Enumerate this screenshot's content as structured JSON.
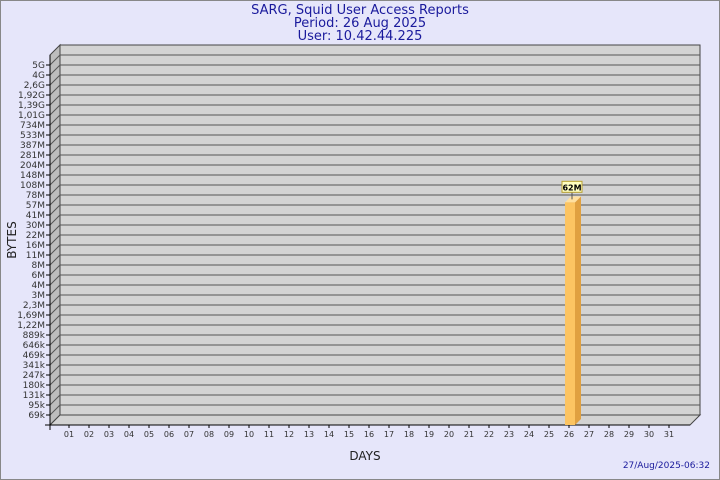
{
  "chart_data": {
    "type": "bar",
    "title": "SARG, Squid User Access Reports",
    "subtitle": [
      "Period: 26 Aug 2025",
      "User: 10.42.44.225"
    ],
    "xlabel": "DAYS",
    "ylabel": "BYTES",
    "y_scale": "log",
    "y_ticks": [
      "69k",
      "95k",
      "131k",
      "180k",
      "247k",
      "341k",
      "469k",
      "646k",
      "889k",
      "1,22M",
      "1,69M",
      "2,3M",
      "3M",
      "4M",
      "6M",
      "8M",
      "11M",
      "16M",
      "22M",
      "30M",
      "41M",
      "57M",
      "78M",
      "108M",
      "148M",
      "204M",
      "281M",
      "387M",
      "533M",
      "734M",
      "1,01G",
      "1,39G",
      "1,92G",
      "2,6G",
      "4G",
      "5G"
    ],
    "y_tick_values": [
      69000,
      95000,
      131000,
      180000,
      247000,
      341000,
      469000,
      646000,
      889000,
      1220000,
      1690000,
      2300000,
      3000000,
      4000000,
      6000000,
      8000000,
      11000000,
      16000000,
      22000000,
      30000000,
      41000000,
      57000000,
      78000000,
      108000000,
      148000000,
      204000000,
      281000000,
      387000000,
      533000000,
      734000000,
      1010000000,
      1390000000,
      1920000000,
      2600000000,
      4000000000,
      5000000000
    ],
    "categories": [
      "01",
      "02",
      "03",
      "04",
      "05",
      "06",
      "07",
      "08",
      "09",
      "10",
      "11",
      "12",
      "13",
      "14",
      "15",
      "16",
      "17",
      "18",
      "19",
      "20",
      "21",
      "22",
      "23",
      "24",
      "25",
      "26",
      "27",
      "28",
      "29",
      "30",
      "31"
    ],
    "bars": [
      {
        "category": "26",
        "value": 62000000,
        "label": "62M"
      }
    ],
    "grid": true,
    "colors": {
      "bar_front": "#fcc462",
      "bar_side": "#e0a040",
      "wall": "#d3d3d3",
      "side_wall": "#bdbdbd",
      "background": "#e6e6fa",
      "title": "#1a1a9c",
      "label_box": "#ffffc0"
    }
  },
  "footer": {
    "timestamp": "27/Aug/2025-06:32"
  }
}
